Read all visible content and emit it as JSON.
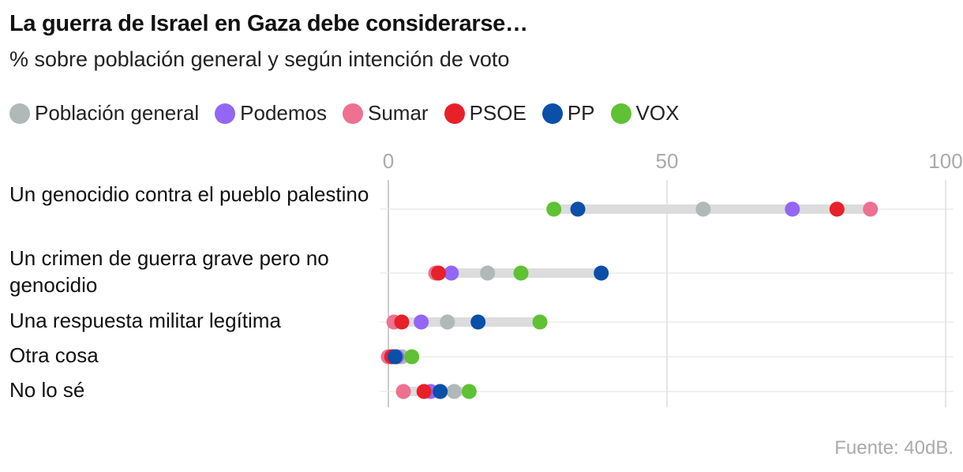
{
  "chart_data": {
    "type": "dot-range",
    "title": "La guerra de Israel en Gaza debe considerarse…",
    "subtitle": "% sobre población general y según intención de voto",
    "source": "Fuente: 40dB.",
    "xlim": [
      0,
      100
    ],
    "xticks": [
      0,
      50,
      100
    ],
    "series": [
      {
        "name": "Población general",
        "color": "#b0b8b8"
      },
      {
        "name": "Podemos",
        "color": "#9466f5"
      },
      {
        "name": "Sumar",
        "color": "#ee7191"
      },
      {
        "name": "PSOE",
        "color": "#e8202a"
      },
      {
        "name": "PP",
        "color": "#0a4fa8"
      },
      {
        "name": "VOX",
        "color": "#5ec234"
      }
    ],
    "categories": [
      {
        "label": "Un genocidio contra el pueblo palestino",
        "values": {
          "Población general": 56.5,
          "Podemos": 72.5,
          "Sumar": 86.5,
          "PSOE": 80.5,
          "PP": 34,
          "VOX": 29.7
        }
      },
      {
        "label": "Un crimen de guerra grave pero no genocidio",
        "values": {
          "Población general": 17.8,
          "Podemos": 11.3,
          "Sumar": 8.5,
          "PSOE": 9.0,
          "PP": 38.2,
          "VOX": 23.8
        }
      },
      {
        "label": "Una respuesta militar legítima",
        "values": {
          "Población general": 10.6,
          "Podemos": 5.9,
          "Sumar": 1.0,
          "PSOE": 2.4,
          "PP": 16.1,
          "VOX": 27.2
        }
      },
      {
        "label": "Otra cosa",
        "values": {
          "Población general": 2.4,
          "Podemos": 1.5,
          "Sumar": 0,
          "PSOE": 0.6,
          "PP": 1.2,
          "VOX": 4.2
        }
      },
      {
        "label": "No lo sé",
        "values": {
          "Población general": 11.8,
          "Podemos": 7.6,
          "Sumar": 2.7,
          "PSOE": 6.4,
          "PP": 9.3,
          "VOX": 14.5
        }
      }
    ]
  }
}
